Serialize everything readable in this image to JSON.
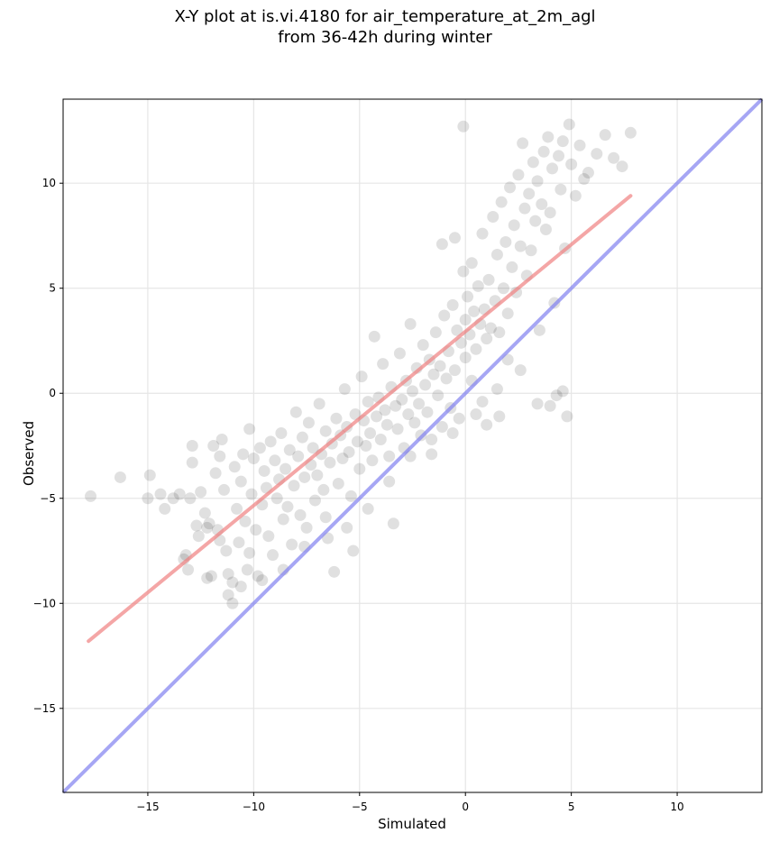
{
  "chart_data": {
    "type": "scatter",
    "title_line1": "X-Y plot at is.vi.4180 for air_temperature_at_2m_agl",
    "title_line2": "from 36-42h during winter",
    "xlabel": "Simulated",
    "ylabel": "Observed",
    "xlim": [
      -19,
      14
    ],
    "ylim": [
      -19,
      14
    ],
    "xticks": [
      -15,
      -10,
      -5,
      0,
      5,
      10
    ],
    "yticks": [
      -15,
      -10,
      -5,
      0,
      5,
      10
    ],
    "xtick_labels": [
      "−15",
      "−10",
      "−5",
      "0",
      "5",
      "10"
    ],
    "ytick_labels": [
      "−15",
      "−10",
      "−5",
      "0",
      "5",
      "10"
    ],
    "grid": true,
    "colors": {
      "points": "#000000",
      "fit_line": "#f08080",
      "identity_line": "#8080f0"
    },
    "fit_line": {
      "x": [
        -17.8,
        7.8
      ],
      "y": [
        -11.8,
        9.4
      ]
    },
    "identity_line": {
      "x": [
        -19,
        14
      ],
      "y": [
        -19,
        14
      ]
    },
    "points": [
      [
        -17.7,
        -4.9
      ],
      [
        -16.3,
        -4.0
      ],
      [
        -15.0,
        -5.0
      ],
      [
        -14.9,
        -3.9
      ],
      [
        -14.4,
        -4.8
      ],
      [
        -14.2,
        -5.5
      ],
      [
        -13.8,
        -5.0
      ],
      [
        -13.5,
        -4.8
      ],
      [
        -13.3,
        -7.9
      ],
      [
        -13.1,
        -8.4
      ],
      [
        -13.0,
        -5.0
      ],
      [
        -12.9,
        -3.3
      ],
      [
        -12.9,
        -2.5
      ],
      [
        -12.7,
        -6.3
      ],
      [
        -12.5,
        -4.7
      ],
      [
        -12.3,
        -5.7
      ],
      [
        -12.2,
        -6.4
      ],
      [
        -12.1,
        -6.2
      ],
      [
        -12.0,
        -8.7
      ],
      [
        -11.9,
        -2.5
      ],
      [
        -11.8,
        -3.8
      ],
      [
        -11.7,
        -6.5
      ],
      [
        -11.6,
        -3.0
      ],
      [
        -11.5,
        -2.2
      ],
      [
        -11.4,
        -4.6
      ],
      [
        -11.3,
        -7.5
      ],
      [
        -11.2,
        -8.6
      ],
      [
        -11.0,
        -9.0
      ],
      [
        -11.0,
        -10.0
      ],
      [
        -10.9,
        -3.5
      ],
      [
        -10.8,
        -5.5
      ],
      [
        -10.7,
        -7.1
      ],
      [
        -10.6,
        -4.2
      ],
      [
        -10.5,
        -2.9
      ],
      [
        -10.4,
        -6.1
      ],
      [
        -10.3,
        -8.4
      ],
      [
        -10.2,
        -1.7
      ],
      [
        -10.1,
        -4.8
      ],
      [
        -10.0,
        -3.1
      ],
      [
        -9.9,
        -6.5
      ],
      [
        -9.8,
        -8.7
      ],
      [
        -9.7,
        -2.6
      ],
      [
        -9.6,
        -5.3
      ],
      [
        -9.5,
        -3.7
      ],
      [
        -9.4,
        -4.5
      ],
      [
        -9.3,
        -6.8
      ],
      [
        -9.2,
        -2.3
      ],
      [
        -9.1,
        -7.7
      ],
      [
        -9.0,
        -3.2
      ],
      [
        -8.9,
        -5.0
      ],
      [
        -8.8,
        -4.1
      ],
      [
        -8.7,
        -1.9
      ],
      [
        -8.6,
        -6.0
      ],
      [
        -8.5,
        -3.6
      ],
      [
        -8.4,
        -5.4
      ],
      [
        -8.3,
        -2.7
      ],
      [
        -8.2,
        -7.2
      ],
      [
        -8.1,
        -4.4
      ],
      [
        -8.0,
        -0.9
      ],
      [
        -7.9,
        -3.0
      ],
      [
        -7.8,
        -5.8
      ],
      [
        -7.7,
        -2.1
      ],
      [
        -7.6,
        -4.0
      ],
      [
        -7.5,
        -6.4
      ],
      [
        -7.4,
        -1.4
      ],
      [
        -7.3,
        -3.4
      ],
      [
        -7.2,
        -2.6
      ],
      [
        -7.1,
        -5.1
      ],
      [
        -7.0,
        -3.9
      ],
      [
        -6.9,
        -0.5
      ],
      [
        -6.8,
        -2.9
      ],
      [
        -6.7,
        -4.6
      ],
      [
        -6.6,
        -1.8
      ],
      [
        -6.5,
        -6.9
      ],
      [
        -6.4,
        -3.3
      ],
      [
        -6.3,
        -2.4
      ],
      [
        -6.2,
        -8.5
      ],
      [
        -6.1,
        -1.2
      ],
      [
        -6.0,
        -4.3
      ],
      [
        -5.9,
        -2.0
      ],
      [
        -5.8,
        -3.1
      ],
      [
        -5.7,
        0.2
      ],
      [
        -5.6,
        -1.6
      ],
      [
        -5.5,
        -2.8
      ],
      [
        -5.4,
        -4.9
      ],
      [
        -5.3,
        -7.5
      ],
      [
        -5.2,
        -1.0
      ],
      [
        -5.1,
        -2.3
      ],
      [
        -5.0,
        -3.6
      ],
      [
        -4.9,
        0.8
      ],
      [
        -4.8,
        -1.3
      ],
      [
        -4.7,
        -2.5
      ],
      [
        -4.6,
        -0.4
      ],
      [
        -4.5,
        -1.9
      ],
      [
        -4.4,
        -3.2
      ],
      [
        -4.3,
        2.7
      ],
      [
        -4.2,
        -1.1
      ],
      [
        -4.1,
        -0.2
      ],
      [
        -4.0,
        -2.2
      ],
      [
        -3.9,
        1.4
      ],
      [
        -3.8,
        -0.8
      ],
      [
        -3.7,
        -1.5
      ],
      [
        -3.6,
        -3.0
      ],
      [
        -3.5,
        0.3
      ],
      [
        -3.4,
        -6.2
      ],
      [
        -3.3,
        -0.6
      ],
      [
        -3.2,
        -1.7
      ],
      [
        -3.1,
        1.9
      ],
      [
        -3.0,
        -0.3
      ],
      [
        -2.9,
        -2.6
      ],
      [
        -2.8,
        0.6
      ],
      [
        -2.7,
        -1.0
      ],
      [
        -2.6,
        3.3
      ],
      [
        -2.5,
        0.1
      ],
      [
        -2.4,
        -1.4
      ],
      [
        -2.3,
        1.2
      ],
      [
        -2.2,
        -0.5
      ],
      [
        -2.1,
        -2.0
      ],
      [
        -2.0,
        2.3
      ],
      [
        -1.9,
        0.4
      ],
      [
        -1.8,
        -0.9
      ],
      [
        -1.7,
        1.6
      ],
      [
        -1.6,
        -2.9
      ],
      [
        -1.5,
        0.9
      ],
      [
        -1.4,
        2.9
      ],
      [
        -1.3,
        -0.1
      ],
      [
        -1.2,
        1.3
      ],
      [
        -1.1,
        -1.6
      ],
      [
        -1.0,
        3.7
      ],
      [
        -0.9,
        0.7
      ],
      [
        -0.8,
        2.0
      ],
      [
        -0.7,
        -0.7
      ],
      [
        -0.6,
        4.2
      ],
      [
        -0.5,
        1.1
      ],
      [
        -0.4,
        3.0
      ],
      [
        -0.3,
        -1.2
      ],
      [
        -0.2,
        2.4
      ],
      [
        -0.1,
        5.8
      ],
      [
        0.0,
        3.5
      ],
      [
        0.0,
        1.7
      ],
      [
        0.1,
        4.6
      ],
      [
        0.2,
        2.8
      ],
      [
        0.3,
        6.2
      ],
      [
        0.4,
        3.9
      ],
      [
        0.5,
        2.1
      ],
      [
        0.6,
        5.1
      ],
      [
        0.7,
        3.3
      ],
      [
        0.8,
        7.6
      ],
      [
        0.9,
        4.0
      ],
      [
        1.0,
        2.6
      ],
      [
        1.1,
        5.4
      ],
      [
        1.2,
        3.1
      ],
      [
        1.3,
        8.4
      ],
      [
        1.4,
        4.4
      ],
      [
        1.5,
        6.6
      ],
      [
        1.6,
        2.9
      ],
      [
        1.7,
        9.1
      ],
      [
        1.8,
        5.0
      ],
      [
        1.9,
        7.2
      ],
      [
        2.0,
        3.8
      ],
      [
        2.1,
        9.8
      ],
      [
        2.2,
        6.0
      ],
      [
        2.3,
        8.0
      ],
      [
        2.4,
        4.8
      ],
      [
        2.5,
        10.4
      ],
      [
        2.6,
        7.0
      ],
      [
        2.7,
        11.9
      ],
      [
        2.8,
        8.8
      ],
      [
        2.9,
        5.6
      ],
      [
        3.0,
        9.5
      ],
      [
        3.1,
        6.8
      ],
      [
        3.2,
        11.0
      ],
      [
        3.3,
        8.2
      ],
      [
        3.4,
        10.1
      ],
      [
        3.5,
        3.0
      ],
      [
        3.6,
        9.0
      ],
      [
        3.7,
        11.5
      ],
      [
        3.8,
        7.8
      ],
      [
        3.9,
        12.2
      ],
      [
        4.0,
        8.6
      ],
      [
        4.1,
        10.7
      ],
      [
        4.2,
        4.3
      ],
      [
        4.3,
        -0.1
      ],
      [
        4.4,
        11.3
      ],
      [
        4.5,
        9.7
      ],
      [
        4.6,
        12.0
      ],
      [
        4.7,
        6.9
      ],
      [
        4.8,
        -1.1
      ],
      [
        4.9,
        12.8
      ],
      [
        5.0,
        10.9
      ],
      [
        5.2,
        9.4
      ],
      [
        5.4,
        11.8
      ],
      [
        5.6,
        10.2
      ],
      [
        5.8,
        10.5
      ],
      [
        6.2,
        11.4
      ],
      [
        6.6,
        12.3
      ],
      [
        7.0,
        11.2
      ],
      [
        7.4,
        10.8
      ],
      [
        7.8,
        12.4
      ],
      [
        -0.1,
        12.7
      ],
      [
        -1.1,
        7.1
      ],
      [
        -0.5,
        7.4
      ],
      [
        0.5,
        -1.0
      ],
      [
        1.0,
        -1.5
      ],
      [
        1.6,
        -1.1
      ],
      [
        3.4,
        -0.5
      ],
      [
        4.0,
        -0.6
      ],
      [
        4.6,
        0.1
      ],
      [
        2.0,
        1.6
      ],
      [
        2.6,
        1.1
      ],
      [
        1.5,
        0.2
      ],
      [
        0.8,
        -0.4
      ],
      [
        0.3,
        0.6
      ],
      [
        -0.6,
        -1.9
      ],
      [
        -1.6,
        -2.2
      ],
      [
        -2.6,
        -3.0
      ],
      [
        -3.6,
        -4.2
      ],
      [
        -4.6,
        -5.5
      ],
      [
        -5.6,
        -6.4
      ],
      [
        -6.6,
        -5.9
      ],
      [
        -7.6,
        -7.3
      ],
      [
        -8.6,
        -8.4
      ],
      [
        -9.6,
        -8.9
      ],
      [
        -10.6,
        -9.2
      ],
      [
        -11.2,
        -9.6
      ],
      [
        -12.2,
        -8.8
      ],
      [
        -13.2,
        -7.7
      ],
      [
        -12.6,
        -6.8
      ],
      [
        -11.6,
        -7.0
      ],
      [
        -10.2,
        -7.6
      ]
    ]
  }
}
